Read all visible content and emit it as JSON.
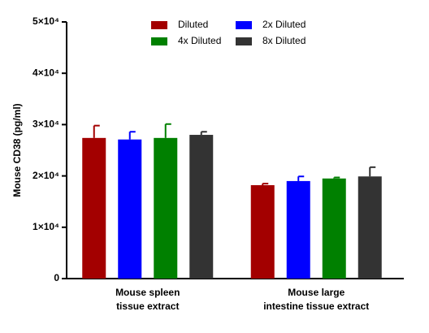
{
  "chart_data": {
    "type": "bar",
    "y_label": "Mouse CD38 (pg/ml)",
    "categories": [
      [
        "Mouse spleen",
        "tissue extract"
      ],
      [
        "Mouse large",
        "intestine tissue extract"
      ]
    ],
    "series": [
      {
        "name": "Diluted",
        "color": "#a30000",
        "values": [
          27400,
          18200
        ],
        "errors": [
          2400,
          300
        ]
      },
      {
        "name": "2x Diluted",
        "color": "#0000ff",
        "values": [
          27100,
          19000
        ],
        "errors": [
          1500,
          900
        ]
      },
      {
        "name": "4x Diluted",
        "color": "#008000",
        "values": [
          27400,
          19500
        ],
        "errors": [
          2700,
          200
        ]
      },
      {
        "name": "8x Diluted",
        "color": "#333333",
        "values": [
          28000,
          19900
        ],
        "errors": [
          600,
          1800
        ]
      }
    ],
    "ylim": [
      0,
      50000
    ],
    "yticks": [
      0,
      {
        "value": 10000,
        "label": "1×10⁴"
      },
      {
        "value": 20000,
        "label": "2×10⁴"
      },
      {
        "value": 30000,
        "label": "3×10⁴"
      },
      {
        "value": 40000,
        "label": "4×10⁴"
      },
      {
        "value": 50000,
        "label": "5×10⁴"
      }
    ]
  }
}
